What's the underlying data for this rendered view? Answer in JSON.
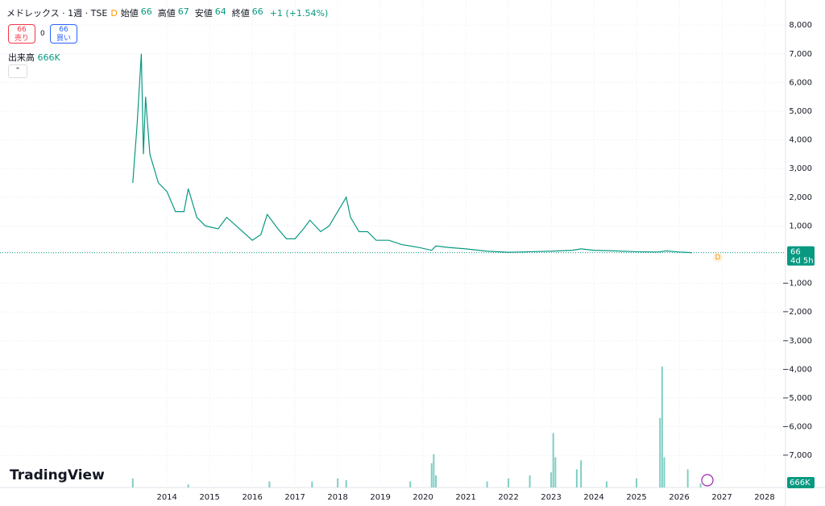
{
  "chart_data": {
    "type": "line",
    "title": "メドレックス · 1週 · TSE",
    "badge": "D",
    "ohlc": [
      {
        "label": "始値",
        "value": 66
      },
      {
        "label": "高値",
        "value": 67
      },
      {
        "label": "安値",
        "value": 64
      },
      {
        "label": "終値",
        "value": 66
      }
    ],
    "change": "+1 (+1.54%)",
    "sell": {
      "price": 66,
      "label": "売り"
    },
    "spread": 0,
    "buy": {
      "price": 66,
      "label": "買い"
    },
    "volume_label": "出来高",
    "volume_value": "666K",
    "last_price": 66,
    "countdown": "4d 5h",
    "brand": "TradingView",
    "xlim": [
      2010.09,
      2028.49
    ],
    "xticks": [
      2014,
      2015,
      2016,
      2017,
      2018,
      2019,
      2020,
      2021,
      2022,
      2023,
      2024,
      2025,
      2026,
      2027,
      2028
    ],
    "ylim": [
      -8118,
      8876
    ],
    "yticks": [
      {
        "value": 8000,
        "label": "8,000"
      },
      {
        "value": 7000,
        "label": "7,000"
      },
      {
        "value": 6000,
        "label": "6,000"
      },
      {
        "value": 5000,
        "label": "5,000"
      },
      {
        "value": 4000,
        "label": "4,000"
      },
      {
        "value": 3000,
        "label": "3,000"
      },
      {
        "value": 2000,
        "label": "2,000"
      },
      {
        "value": 1000,
        "label": "1,000"
      },
      {
        "value": -1000,
        "label": "−1,000"
      },
      {
        "value": -2000,
        "label": "−2,000"
      },
      {
        "value": -3000,
        "label": "−3,000"
      },
      {
        "value": -4000,
        "label": "−4,000"
      },
      {
        "value": -5000,
        "label": "−5,000"
      },
      {
        "value": -6000,
        "label": "−6,000"
      },
      {
        "value": -7000,
        "label": "−7,000"
      }
    ],
    "y2lim": [
      0,
      30000000
    ],
    "grid": true,
    "series": [
      {
        "color": "#089981",
        "x": [
          2013.2,
          2013.3,
          2013.4,
          2013.45,
          2013.5,
          2013.6,
          2013.7,
          2013.8,
          2014.0,
          2014.2,
          2014.4,
          2014.5,
          2014.7,
          2014.9,
          2015.2,
          2015.4,
          2015.7,
          2016.0,
          2016.2,
          2016.35,
          2016.6,
          2016.8,
          2017.0,
          2017.2,
          2017.35,
          2017.6,
          2017.8,
          2018.0,
          2018.2,
          2018.3,
          2018.5,
          2018.7,
          2018.9,
          2019.2,
          2019.5,
          2019.9,
          2020.2,
          2020.3,
          2020.6,
          2021.0,
          2021.5,
          2022.0,
          2022.5,
          2023.0,
          2023.5,
          2023.7,
          2024.0,
          2024.5,
          2025.0,
          2025.5,
          2025.7,
          2026.0,
          2026.3
        ],
        "values": [
          2500,
          4500,
          7000,
          3500,
          5500,
          3500,
          3000,
          2500,
          2200,
          1500,
          1500,
          2300,
          1300,
          1000,
          900,
          1300,
          900,
          500,
          700,
          1400,
          900,
          550,
          550,
          900,
          1200,
          800,
          1000,
          1500,
          2000,
          1300,
          800,
          800,
          500,
          500,
          350,
          250,
          150,
          300,
          250,
          200,
          120,
          80,
          100,
          120,
          150,
          200,
          150,
          130,
          100,
          90,
          130,
          90,
          66
        ]
      },
      {
        "type": "bar",
        "axis": "y2",
        "color": "#7fcfc3",
        "x": [
          2013.2,
          2014.5,
          2016.4,
          2017.4,
          2018.0,
          2018.2,
          2019.7,
          2020.2,
          2020.25,
          2020.3,
          2021.5,
          2022.0,
          2022.5,
          2023.0,
          2023.05,
          2023.1,
          2023.6,
          2023.7,
          2024.3,
          2025.0,
          2025.55,
          2025.6,
          2025.65,
          2026.2,
          2026.5
        ],
        "values": [
          1500000,
          500000,
          1000000,
          1000000,
          1500000,
          1200000,
          1000000,
          4000000,
          5500000,
          2000000,
          1000000,
          1500000,
          2000000,
          2500000,
          9000000,
          5000000,
          3000000,
          4500000,
          1000000,
          1500000,
          11500000,
          20000000,
          5000000,
          3000000,
          666000
        ]
      }
    ]
  }
}
